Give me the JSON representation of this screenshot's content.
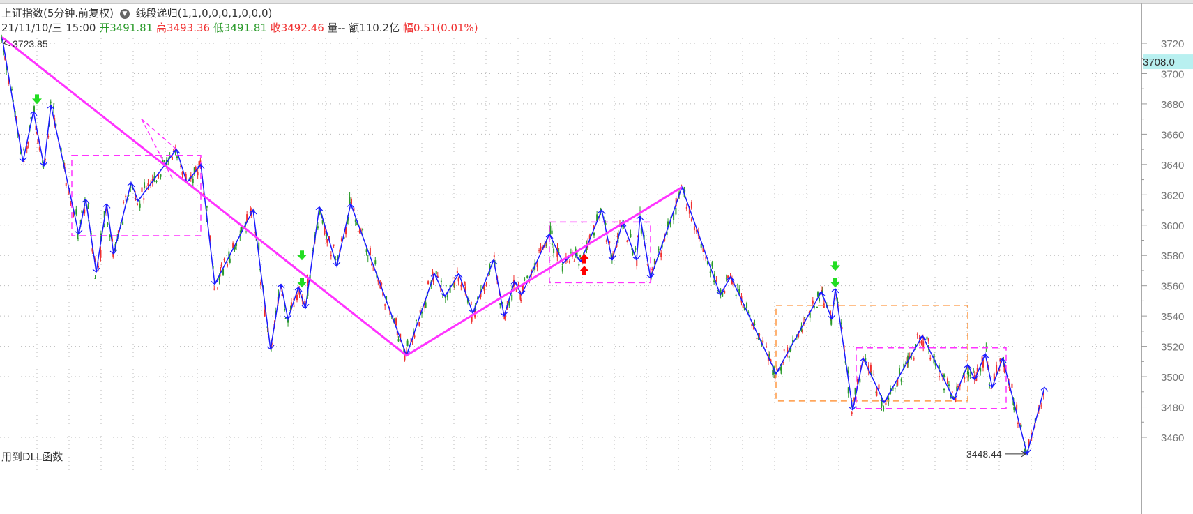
{
  "header": {
    "title": "上证指数(5分钟.前复权)",
    "indicator": "线段递归(1,1,0,0,0,1,0,0,0)",
    "datetime": "21/11/10/三 15:00",
    "open_label": "开",
    "open": "3491.81",
    "high_label": "高",
    "high": "3493.36",
    "low_label": "低",
    "low": "3491.81",
    "close_label": "收",
    "close": "3492.46",
    "vol_label": "量",
    "vol": "--",
    "amount_label": "额",
    "amount": "110.2亿",
    "change_label": "幅",
    "change": "0.51(0.01%)"
  },
  "footer_note": "用到DLL函数",
  "colors": {
    "up": "#f03030",
    "down": "#2a9a2a",
    "stroke": "#1a1aff",
    "segment": "#ff33ff",
    "orange_box": "#ff9944",
    "cursor_bg": "#b8f0f0"
  },
  "chart_data": {
    "type": "candlestick",
    "ylim": [
      3440,
      3725
    ],
    "yticks": [
      "3720",
      "3700",
      "3680",
      "3660",
      "3640",
      "3620",
      "3600",
      "3580",
      "3560",
      "3540",
      "3520",
      "3500",
      "3480",
      "3460"
    ],
    "cursor_price": "3708.0",
    "max_label": "3723.85",
    "min_label": "3448.44",
    "strokes": [
      [
        0,
        3724
      ],
      [
        6,
        3642
      ],
      [
        9,
        3675
      ],
      [
        12,
        3639
      ],
      [
        14,
        3679
      ],
      [
        22,
        3594
      ],
      [
        24,
        3617
      ],
      [
        27,
        3569
      ],
      [
        30,
        3614
      ],
      [
        32,
        3581
      ],
      [
        37,
        3628
      ],
      [
        39,
        3616
      ],
      [
        50,
        3650
      ],
      [
        53,
        3628
      ],
      [
        57,
        3640
      ],
      [
        61,
        3561
      ],
      [
        72,
        3610
      ],
      [
        77,
        3518
      ],
      [
        80,
        3561
      ],
      [
        82,
        3538
      ],
      [
        85,
        3559
      ],
      [
        87,
        3545
      ],
      [
        91,
        3612
      ],
      [
        96,
        3573
      ],
      [
        100,
        3614
      ],
      [
        116,
        3514
      ],
      [
        124,
        3568
      ],
      [
        127,
        3553
      ],
      [
        131,
        3568
      ],
      [
        135,
        3542
      ],
      [
        141,
        3577
      ],
      [
        144,
        3540
      ],
      [
        147,
        3563
      ],
      [
        149,
        3554
      ],
      [
        157,
        3594
      ],
      [
        161,
        3575
      ],
      [
        164,
        3582
      ],
      [
        166,
        3576
      ],
      [
        172,
        3610
      ],
      [
        175,
        3577
      ],
      [
        178,
        3602
      ],
      [
        182,
        3577
      ],
      [
        183,
        3606
      ],
      [
        186,
        3565
      ],
      [
        195,
        3625
      ],
      [
        206,
        3554
      ],
      [
        209,
        3566
      ],
      [
        222,
        3502
      ],
      [
        235,
        3556
      ],
      [
        238,
        3538
      ],
      [
        239,
        3558
      ],
      [
        244,
        3478
      ],
      [
        247,
        3512
      ],
      [
        253,
        3483
      ],
      [
        264,
        3527
      ],
      [
        273,
        3485
      ],
      [
        277,
        3508
      ],
      [
        279,
        3498
      ],
      [
        282,
        3515
      ],
      [
        284,
        3493
      ],
      [
        287,
        3512
      ],
      [
        294,
        3449
      ],
      [
        299,
        3493
      ]
    ],
    "segments": [
      [
        0,
        3724
      ],
      [
        116,
        3514
      ],
      [
        195,
        3625
      ]
    ],
    "dashed_segments": [
      [
        [
          40,
          3670
        ],
        [
          49,
          3630
        ]
      ],
      [
        [
          40,
          3670
        ],
        [
          50,
          3650
        ]
      ]
    ],
    "pivot_boxes": [
      {
        "from": 20,
        "to": 57,
        "high": 3646,
        "low": 3593,
        "color": "#ff33ff"
      },
      {
        "from": 157,
        "to": 186,
        "high": 3602,
        "low": 3562,
        "color": "#ff33ff"
      },
      {
        "from": 222,
        "to": 277,
        "high": 3547,
        "low": 3484,
        "color": "#ff9944"
      },
      {
        "from": 245,
        "to": 288,
        "high": 3519,
        "low": 3479,
        "color": "#ff33ff"
      }
    ],
    "sell_signals": [
      [
        10,
        3683
      ],
      [
        86,
        3580
      ],
      [
        86,
        3562
      ],
      [
        239,
        3573
      ],
      [
        239,
        3562
      ]
    ],
    "buy_signals": [
      [
        167,
        3578
      ],
      [
        167,
        3570
      ]
    ]
  }
}
